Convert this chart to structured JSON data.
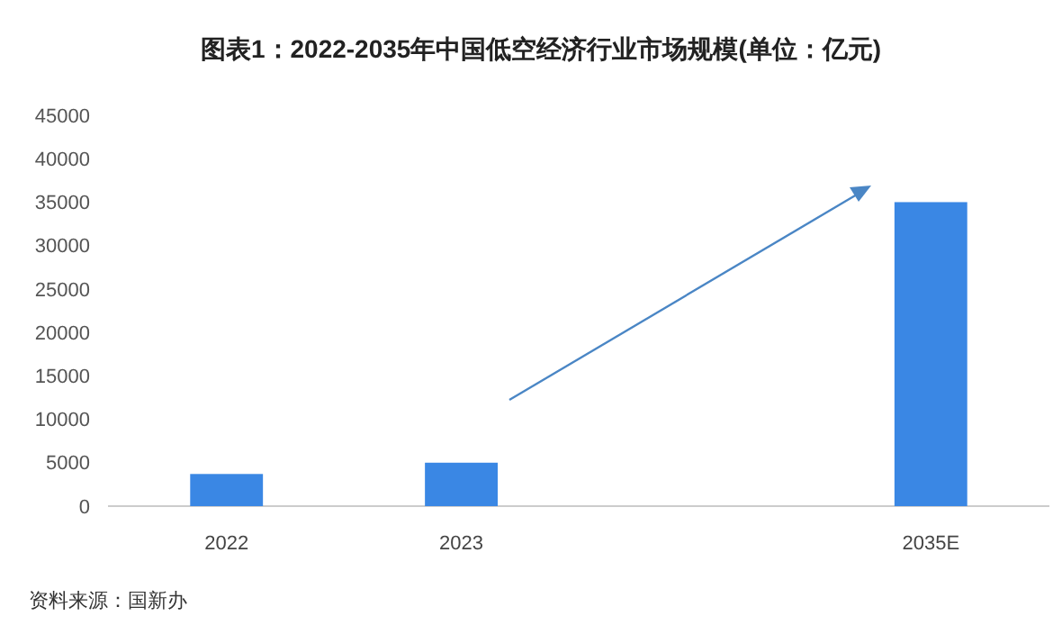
{
  "chart_data": {
    "type": "bar",
    "title": "图表1：2022-2035年中国低空经济行业市场规模(单位：亿元)",
    "categories": [
      "2022",
      "2023",
      null,
      "2035E"
    ],
    "values": [
      3700,
      5000,
      null,
      35000
    ],
    "color": "#3a87e4",
    "ylim": [
      0,
      45000
    ],
    "yticks": [
      0,
      5000,
      10000,
      15000,
      20000,
      25000,
      30000,
      35000,
      40000,
      45000
    ],
    "grid": false,
    "annotations": [
      "资料来源：国新办"
    ]
  }
}
